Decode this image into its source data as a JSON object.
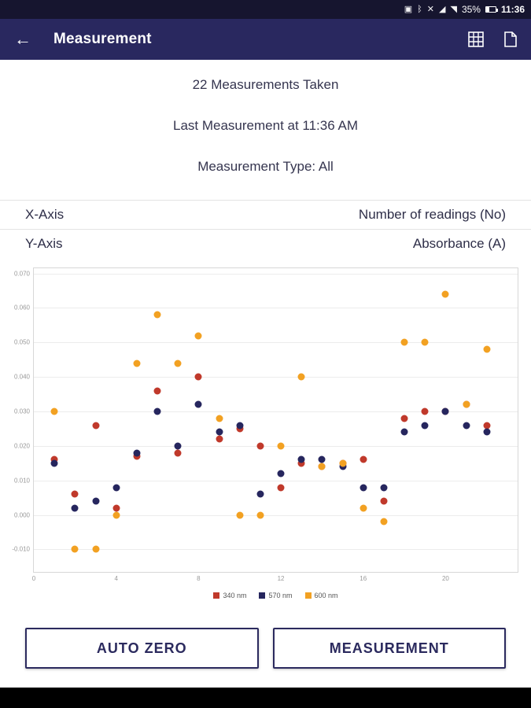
{
  "status_bar": {
    "icons": [
      {
        "name": "screenshot-icon",
        "glyph": "▣"
      },
      {
        "name": "bluetooth-icon",
        "glyph": "ᛒ"
      },
      {
        "name": "mute-icon",
        "glyph": "✕"
      },
      {
        "name": "signal-icon",
        "glyph": "◢"
      },
      {
        "name": "wifi-icon",
        "glyph": "◥"
      }
    ],
    "battery_percent": "35%",
    "time": "11:36"
  },
  "app_bar": {
    "title": "Measurement"
  },
  "summary": {
    "measurements_taken": "22 Measurements Taken",
    "last_measurement": "Last Measurement at 11:36 AM",
    "measurement_type": "Measurement Type: All"
  },
  "axes_config": [
    {
      "label": "X-Axis",
      "value": "Number of readings (No)"
    },
    {
      "label": "Y-Axis",
      "value": "Absorbance (A)"
    }
  ],
  "chart_data": {
    "type": "scatter",
    "x": [
      1,
      2,
      3,
      4,
      5,
      6,
      7,
      8,
      9,
      10,
      11,
      12,
      13,
      14,
      15,
      16,
      17,
      18,
      19,
      20,
      21,
      22
    ],
    "series": [
      {
        "name": "340 nm",
        "color": "#c0392b",
        "values": [
          0.016,
          0.006,
          0.026,
          0.002,
          0.017,
          0.036,
          0.018,
          0.04,
          0.022,
          0.025,
          0.02,
          0.008,
          0.015,
          0.014,
          0.015,
          0.016,
          0.004,
          0.028,
          0.03,
          0.03,
          0.032,
          0.026
        ]
      },
      {
        "name": "570 nm",
        "color": "#26265e",
        "values": [
          0.015,
          0.002,
          0.004,
          0.008,
          0.018,
          0.03,
          0.02,
          0.032,
          0.024,
          0.026,
          0.006,
          0.012,
          0.016,
          0.016,
          0.014,
          0.008,
          0.008,
          0.024,
          0.026,
          0.03,
          0.026,
          0.024
        ]
      },
      {
        "name": "600 nm",
        "color": "#f2a122",
        "values": [
          0.03,
          -0.01,
          -0.01,
          0.0,
          0.044,
          0.058,
          0.044,
          0.052,
          0.028,
          0.0,
          0.0,
          0.02,
          0.04,
          0.014,
          0.015,
          0.002,
          -0.002,
          0.05,
          0.05,
          0.064,
          0.032,
          0.048
        ]
      }
    ],
    "yticks": [
      0.07,
      0.06,
      0.05,
      0.04,
      0.03,
      0.02,
      0.01,
      0.0,
      -0.01
    ],
    "xticks": [
      0,
      4,
      8,
      12,
      16,
      20
    ],
    "ylim": [
      -0.0165,
      0.0715
    ],
    "xlim": [
      0,
      23.5
    ],
    "grid": "horizontal",
    "legend_position": "bottom"
  },
  "buttons": {
    "auto_zero": "AUTO ZERO",
    "measurement": "MEASUREMENT"
  },
  "colors": {
    "app_bar": "#29285f",
    "status_bar": "#16152f",
    "accent_text": "#2b2a5e"
  }
}
